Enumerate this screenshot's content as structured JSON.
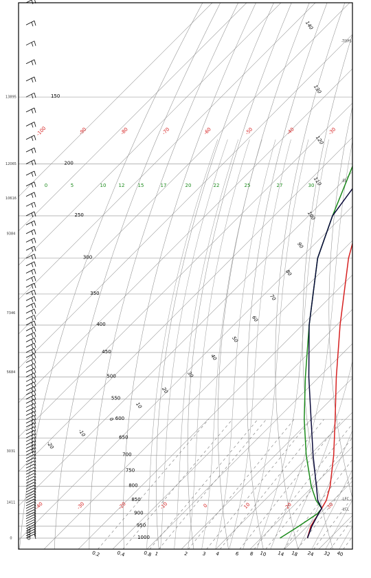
{
  "chart_data": {
    "type": "skew-t log-p",
    "pressure_levels": [
      150,
      200,
      250,
      300,
      350,
      400,
      450,
      500,
      550,
      600,
      650,
      700,
      750,
      800,
      850,
      900,
      950,
      1000
    ],
    "height_labels": [
      "13895",
      "12065",
      "10616",
      "9384",
      "7346",
      "5684",
      "3031",
      "1411",
      "0"
    ],
    "height_label_pressures": [
      150,
      200,
      232,
      270,
      380,
      490,
      688,
      857,
      1000
    ],
    "mixing_ratio_labels": [
      "0.2",
      "0.4",
      "0.8",
      "1",
      "2",
      "3",
      "4",
      "6",
      "8",
      "10",
      "14",
      "18",
      "24",
      "32",
      "40"
    ],
    "mixing_ratio_values": [
      0.2,
      0.4,
      0.8,
      1,
      2,
      3,
      4,
      6,
      8,
      10,
      14,
      18,
      24,
      32,
      40
    ],
    "red_temperature_labels": [
      "-100",
      "-90",
      "-80",
      "-70",
      "-60",
      "-50",
      "-40",
      "-30"
    ],
    "red_temperature_values": [
      -100,
      -90,
      -80,
      -70,
      -60,
      -50,
      -40,
      -30
    ],
    "bottom_temperature_labels": [
      "-40",
      "-30",
      "-20",
      "-10",
      "0",
      "10",
      "20",
      "30"
    ],
    "bottom_temperature_values": [
      -40,
      -30,
      -20,
      -10,
      0,
      10,
      20,
      30
    ],
    "green_scale_labels": [
      "0",
      "5",
      "10",
      "12",
      "15",
      "17",
      "20",
      "22",
      "25",
      "27",
      "30"
    ],
    "isotherm_labels": [
      "-20",
      "-10",
      "0",
      "10",
      "20",
      "30",
      "40",
      "50",
      "60",
      "70",
      "80",
      "90",
      "100",
      "110",
      "120",
      "130",
      "140"
    ],
    "isotherm_label_temperatures": [
      -20,
      -10,
      0,
      10,
      20,
      30,
      40,
      50,
      60,
      70,
      80,
      90,
      100,
      110,
      120,
      130,
      140
    ],
    "isotherm_label_pressures": [
      680,
      660,
      600,
      590,
      560,
      545,
      520,
      490,
      470,
      430,
      390,
      355,
      315,
      262,
      205,
      160,
      102
    ],
    "right_markers": {
      "tops": "-TOPS",
      "el": "-EL",
      "lfc": "-LFC",
      "lcl": "-LCL",
      "tops_pressure": 118,
      "el_pressure": 215,
      "lfc_pressure": 845,
      "lcl_pressure": 883
    },
    "series": [
      {
        "color": "#1a8a1a",
        "pressure": [
          1000,
          950,
          900,
          880,
          850,
          800,
          700,
          600,
          500,
          400,
          300,
          250,
          200,
          100
        ],
        "value": [
          15.5,
          17.5,
          19.3,
          19.0,
          15.0,
          9.5,
          -1.0,
          -12.0,
          -24.0,
          -38.0,
          -55.0,
          -63.0,
          -72.0,
          -40.0
        ]
      },
      {
        "color": "#d62020",
        "pressure": [
          1000,
          950,
          900,
          880,
          850,
          800,
          700,
          600,
          500,
          400,
          300,
          250,
          200,
          150,
          100
        ],
        "value": [
          23.5,
          21.0,
          19.6,
          19.0,
          18.0,
          15.0,
          7.0,
          -3.0,
          -15.0,
          -29.0,
          -46.0,
          -55.0,
          -64.0,
          -70.0,
          -76.0
        ]
      },
      {
        "color": "#0a0a3a",
        "pressure": [
          1000,
          950,
          900,
          880,
          850,
          800,
          700,
          600,
          500,
          400,
          300,
          250,
          200,
          100
        ],
        "value": [
          23.5,
          21.3,
          19.6,
          19.0,
          15.5,
          11.0,
          1.0,
          -10.0,
          -23.0,
          -38.0,
          -55.0,
          -63.0,
          -67.0,
          -13.0
        ]
      }
    ]
  }
}
